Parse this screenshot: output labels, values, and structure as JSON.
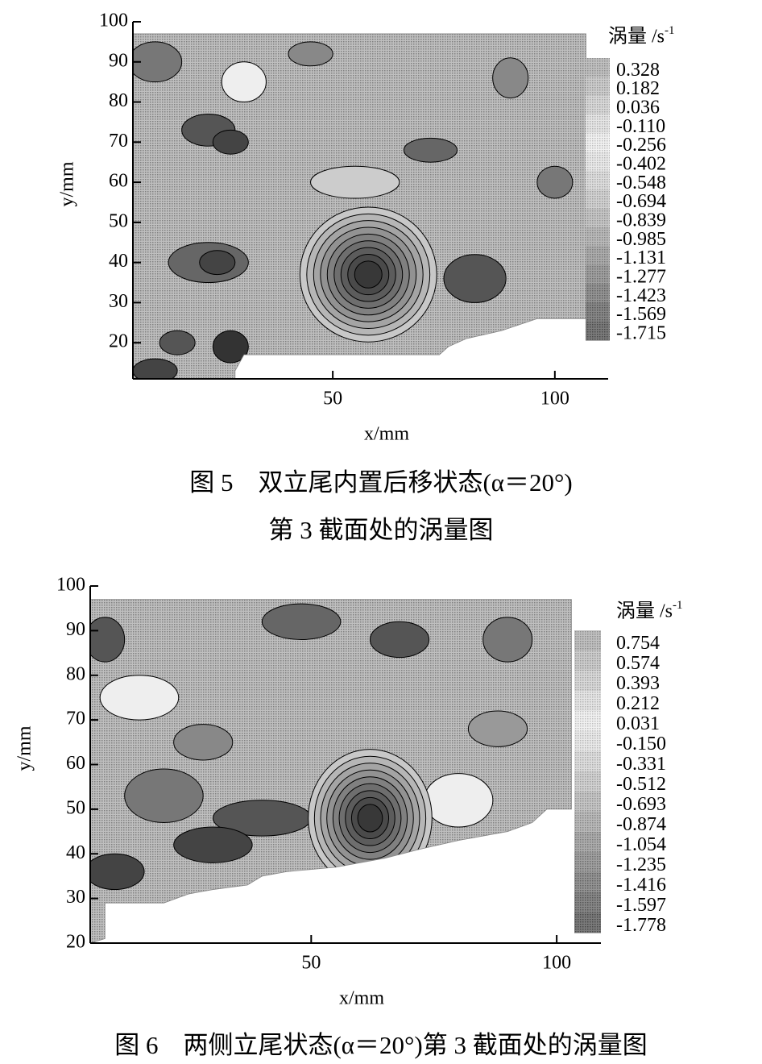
{
  "chart_data": [
    {
      "type": "contour",
      "x_label": "x/mm",
      "y_label": "y/mm",
      "colorbar_label": "涡量 /s",
      "colorbar_label_exponent": "-1",
      "xlim": [
        5,
        112
      ],
      "ylim": [
        11,
        100
      ],
      "xticks": [
        50,
        100
      ],
      "yticks": [
        20,
        30,
        40,
        50,
        60,
        70,
        80,
        90,
        100
      ],
      "levels": [
        0.328,
        0.182,
        0.036,
        {
          "value": -0.11,
          "label": "-0.110"
        },
        -0.256,
        -0.402,
        -0.548,
        -0.694,
        -0.839,
        -0.985,
        -1.131,
        -1.277,
        -1.423,
        -1.569,
        -1.715
      ],
      "caption": [
        "图 5　双立尾内置后移状态(α＝20°)",
        "第 3 截面处的涡量图"
      ]
    },
    {
      "type": "contour",
      "x_label": "x/mm",
      "y_label": "y/mm",
      "colorbar_label": "涡量 /s",
      "colorbar_label_exponent": "-1",
      "xlim": [
        5,
        109
      ],
      "ylim": [
        20,
        100
      ],
      "xticks": [
        50,
        100
      ],
      "yticks": [
        20,
        30,
        40,
        50,
        60,
        70,
        80,
        90,
        100
      ],
      "levels": [
        0.754,
        0.574,
        0.393,
        0.212,
        0.031,
        {
          "value": -0.15,
          "label": "-0.150"
        },
        -0.331,
        -0.512,
        -0.693,
        -0.874,
        -1.054,
        -1.235,
        -1.416,
        -1.597,
        -1.778
      ],
      "caption": [
        "图 6　两侧立尾状态(α＝20°)第 3 截面处的涡量图"
      ]
    }
  ]
}
